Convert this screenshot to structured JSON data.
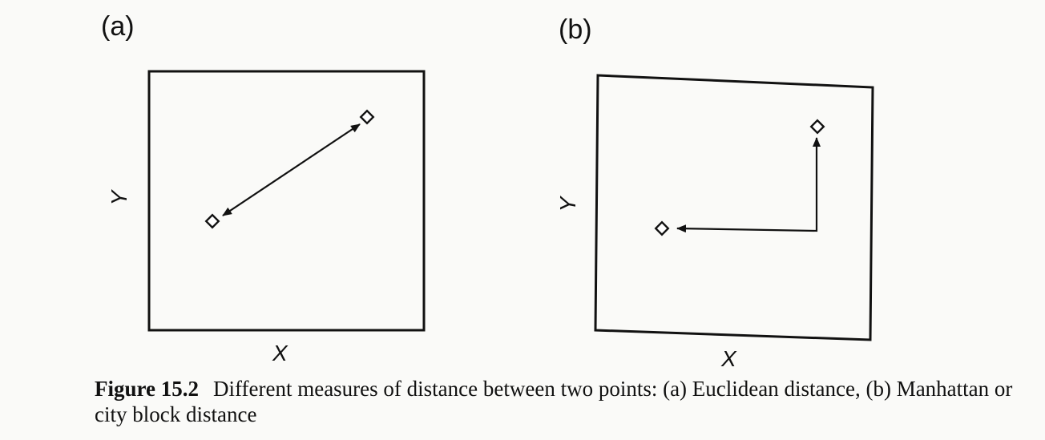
{
  "panels": [
    {
      "label": "(a)",
      "xlabel": "X",
      "ylabel": "Y"
    },
    {
      "label": "(b)",
      "xlabel": "X",
      "ylabel": "Y"
    }
  ],
  "caption": {
    "figure_number": "Figure 15.2",
    "text": "Different measures of distance between two points: (a) Euclidean distance, (b) Manhattan or city block distance"
  }
}
